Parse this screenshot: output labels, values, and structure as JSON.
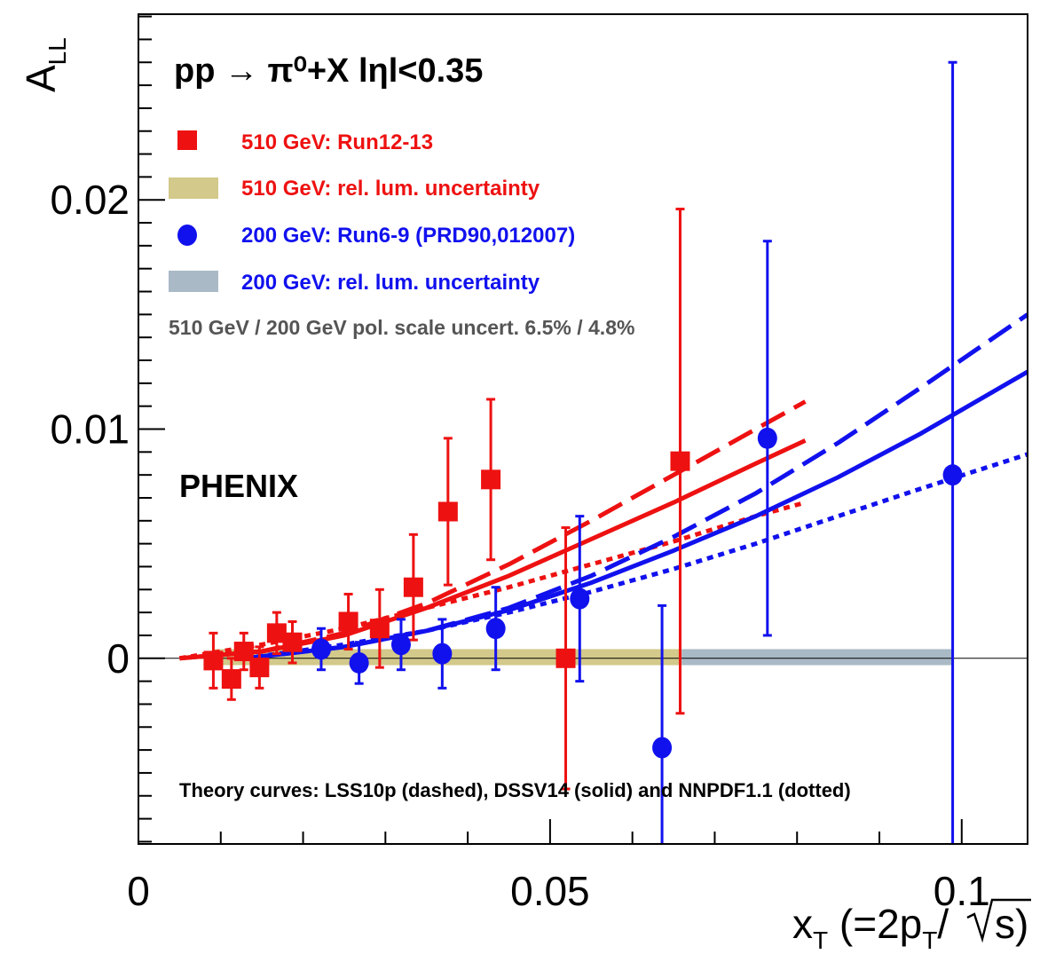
{
  "chart_data": {
    "type": "scatter",
    "title": "pp → π⁰+X  lηl<0.35",
    "experiment_label": "PHENIX",
    "xlabel": "x_T (=2p_T/√s)",
    "ylabel": "A_LL",
    "xlim": [
      0,
      0.108
    ],
    "ylim": [
      -0.0081,
      0.0281
    ],
    "x_ticks": [
      {
        "value": 0,
        "label": "0"
      },
      {
        "value": 0.05,
        "label": "0.05"
      },
      {
        "value": 0.1,
        "label": "0.1"
      }
    ],
    "y_ticks": [
      {
        "value": 0,
        "label": "0"
      },
      {
        "value": 0.01,
        "label": "0.01"
      },
      {
        "value": 0.02,
        "label": "0.02"
      }
    ],
    "grid": false,
    "legend_position": "top-left",
    "legend": [
      {
        "label": "510 GeV: Run12-13",
        "marker": "square",
        "color": "#ee1111"
      },
      {
        "label": "510 GeV: rel. lum. uncertainty",
        "marker": "band",
        "color": "#d2c98a"
      },
      {
        "label": "200 GeV: Run6-9 (PRD90,012007)",
        "marker": "circle",
        "color": "#1111ee"
      },
      {
        "label": "200 GeV: rel. lum. uncertainty",
        "marker": "band",
        "color": "#a9b9c6"
      }
    ],
    "annotations": {
      "pol_scale": "510 GeV / 200 GeV pol. scale uncert. 6.5% / 4.8%",
      "theory": "Theory curves: LSS10p (dashed), DSSV14 (solid) and NNPDF1.1 (dotted)"
    },
    "series": [
      {
        "name": "510 GeV: Run12-13",
        "marker": "square",
        "color": "#ee1111",
        "points": [
          {
            "x": 0.0091,
            "y": -0.0001,
            "err": 0.0012
          },
          {
            "x": 0.0113,
            "y": -0.0009,
            "err": 0.0009
          },
          {
            "x": 0.0128,
            "y": 0.0003,
            "err": 0.0008
          },
          {
            "x": 0.0147,
            "y": -0.0004,
            "err": 0.0009
          },
          {
            "x": 0.0168,
            "y": 0.0011,
            "err": 0.0009
          },
          {
            "x": 0.0187,
            "y": 0.0007,
            "err": 0.0009
          },
          {
            "x": 0.0255,
            "y": 0.0016,
            "err": 0.0012
          },
          {
            "x": 0.0293,
            "y": 0.0013,
            "err": 0.0017
          },
          {
            "x": 0.0334,
            "y": 0.0031,
            "err": 0.0023
          },
          {
            "x": 0.0376,
            "y": 0.0064,
            "err": 0.0032
          },
          {
            "x": 0.0428,
            "y": 0.0078,
            "err": 0.0035
          },
          {
            "x": 0.0519,
            "y": 0.0,
            "err": 0.0057
          },
          {
            "x": 0.0658,
            "y": 0.0086,
            "err": 0.011
          }
        ]
      },
      {
        "name": "200 GeV: Run6-9 (PRD90,012007)",
        "marker": "circle",
        "color": "#1111ee",
        "points": [
          {
            "x": 0.0222,
            "y": 0.0004,
            "err": 0.0009
          },
          {
            "x": 0.0268,
            "y": -0.0002,
            "err": 0.0009
          },
          {
            "x": 0.0319,
            "y": 0.0006,
            "err": 0.0011
          },
          {
            "x": 0.0369,
            "y": 0.0002,
            "err": 0.0015
          },
          {
            "x": 0.0434,
            "y": 0.0013,
            "err": 0.0018
          },
          {
            "x": 0.0536,
            "y": 0.0026,
            "err": 0.0036
          },
          {
            "x": 0.0636,
            "y": -0.0039,
            "err": 0.0062
          },
          {
            "x": 0.0764,
            "y": 0.0096,
            "err": 0.0086
          },
          {
            "x": 0.0989,
            "y": 0.008,
            "err": 0.018
          }
        ]
      }
    ],
    "bands": [
      {
        "name": "510 GeV: rel. lum. uncertainty",
        "color": "#d2c98a",
        "x": [
          0.009,
          0.066
        ],
        "y": [
          -0.0003,
          0.0004
        ]
      },
      {
        "name": "200 GeV: rel. lum. uncertainty",
        "color": "#a9b9c6",
        "x": [
          0.066,
          0.099
        ],
        "y": [
          -0.0003,
          0.0004
        ]
      }
    ],
    "curves": [
      {
        "name": "LSS10p",
        "beam": "510 GeV",
        "style": "dashed",
        "color": "#ee1111",
        "x": [
          0.005,
          0.015,
          0.025,
          0.035,
          0.045,
          0.055,
          0.065,
          0.075,
          0.081
        ],
        "y": [
          0.0,
          0.0003,
          0.0011,
          0.0024,
          0.0041,
          0.006,
          0.008,
          0.01,
          0.0112
        ]
      },
      {
        "name": "DSSV14",
        "beam": "510 GeV",
        "style": "solid",
        "color": "#ee1111",
        "x": [
          0.005,
          0.015,
          0.025,
          0.035,
          0.045,
          0.055,
          0.065,
          0.075,
          0.081
        ],
        "y": [
          0.0,
          0.0003,
          0.001,
          0.0022,
          0.0036,
          0.0052,
          0.0068,
          0.0085,
          0.0095
        ]
      },
      {
        "name": "NNPDF1.1",
        "beam": "510 GeV",
        "style": "dotted",
        "color": "#ee1111",
        "x": [
          0.005,
          0.015,
          0.025,
          0.035,
          0.045,
          0.055,
          0.065,
          0.075,
          0.081
        ],
        "y": [
          0.0,
          0.0006,
          0.0013,
          0.0022,
          0.0031,
          0.0041,
          0.0051,
          0.0062,
          0.0068
        ]
      },
      {
        "name": "LSS10p",
        "beam": "200 GeV",
        "style": "dashed",
        "color": "#1111ee",
        "x": [
          0.013,
          0.025,
          0.035,
          0.045,
          0.055,
          0.065,
          0.075,
          0.085,
          0.095,
          0.108
        ],
        "y": [
          0.0,
          0.0005,
          0.0012,
          0.0022,
          0.0036,
          0.0053,
          0.0072,
          0.0094,
          0.0118,
          0.015
        ]
      },
      {
        "name": "DSSV14",
        "beam": "200 GeV",
        "style": "solid",
        "color": "#1111ee",
        "x": [
          0.013,
          0.025,
          0.035,
          0.045,
          0.055,
          0.065,
          0.075,
          0.085,
          0.095,
          0.108
        ],
        "y": [
          0.0,
          0.0005,
          0.0012,
          0.0021,
          0.0033,
          0.0047,
          0.0062,
          0.0079,
          0.0098,
          0.0125
        ]
      },
      {
        "name": "NNPDF1.1",
        "beam": "200 GeV",
        "style": "dotted",
        "color": "#1111ee",
        "x": [
          0.013,
          0.025,
          0.035,
          0.045,
          0.055,
          0.065,
          0.075,
          0.085,
          0.095,
          0.108
        ],
        "y": [
          0.0,
          0.0006,
          0.0012,
          0.002,
          0.0029,
          0.0039,
          0.005,
          0.0062,
          0.0074,
          0.0089
        ]
      }
    ]
  }
}
